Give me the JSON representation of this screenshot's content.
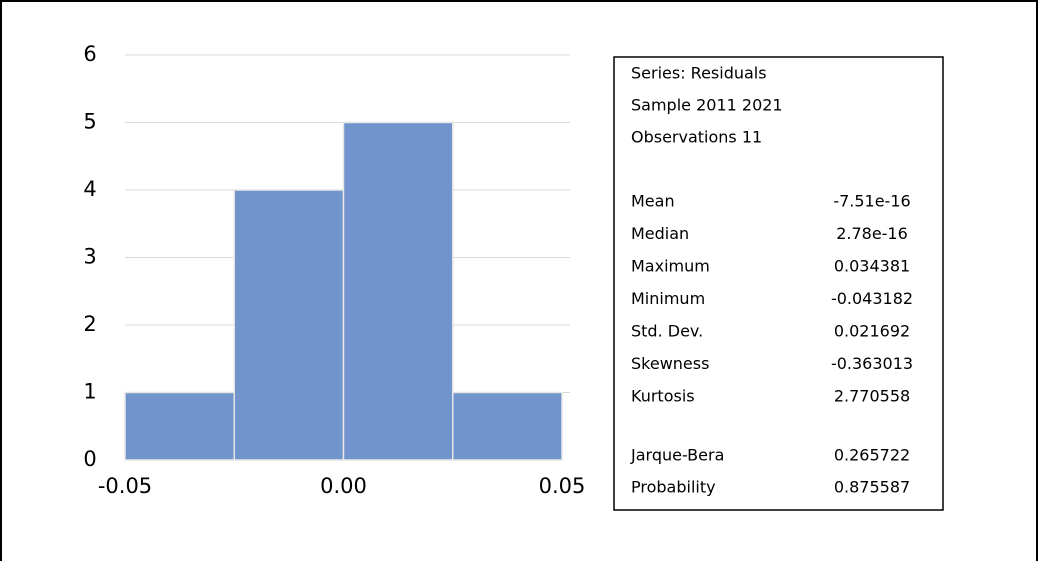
{
  "chart_data": {
    "type": "histogram",
    "bins": [
      -0.05,
      -0.025,
      0,
      0.025,
      0.05
    ],
    "counts": [
      1,
      4,
      5,
      1
    ],
    "color": "#7294cc",
    "xlim": [
      -0.05,
      0.05
    ],
    "xticks": [
      -0.05,
      {
        "value": 0,
        "label": "0.00"
      },
      0.05
    ],
    "ylim": [
      0,
      6
    ],
    "yticks": [
      0,
      1,
      2,
      3,
      4,
      5,
      6
    ],
    "grid": true,
    "stats_box": {
      "header": [
        "Series: Residuals",
        "Sample 2011 2021",
        "Observations 11"
      ],
      "rows": [
        [
          "Mean",
          "-7.51e-16"
        ],
        [
          "Median",
          "2.78e-16"
        ],
        [
          "Maximum",
          "0.034381"
        ],
        [
          "Minimum",
          "-0.043182"
        ],
        [
          "Std. Dev.",
          "0.021692"
        ],
        [
          "Skewness",
          "-0.363013"
        ],
        [
          "Kurtosis",
          "2.770558"
        ]
      ],
      "tests": [
        [
          "Jarque-Bera",
          "0.265722"
        ],
        [
          "Probability",
          "0.875587"
        ]
      ]
    }
  }
}
